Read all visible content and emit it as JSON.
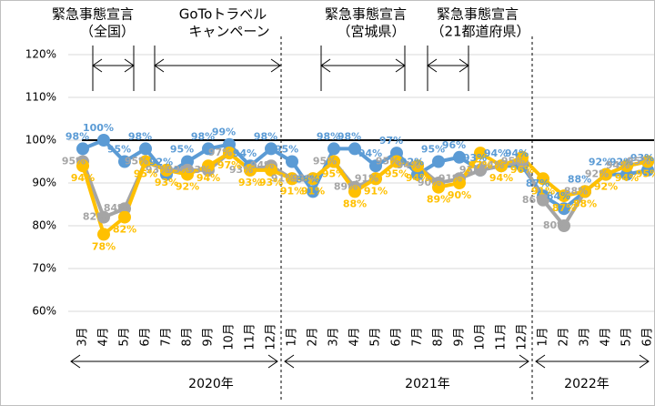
{
  "chart_data": {
    "type": "line",
    "categories": [
      "3月",
      "4月",
      "5月",
      "6月",
      "7月",
      "8月",
      "9月",
      "10月",
      "11月",
      "12月",
      "1月",
      "2月",
      "3月",
      "4月",
      "5月",
      "6月",
      "7月",
      "8月",
      "9月",
      "10月",
      "11月",
      "12月",
      "1月",
      "2月",
      "3月",
      "4月",
      "5月",
      "6月"
    ],
    "year_labels": [
      "2020年",
      "2021年",
      "2022年"
    ],
    "annotations": [
      {
        "lines": [
          "緊急事態宣言",
          "（全国）"
        ]
      },
      {
        "lines": [
          "GoToトラベル",
          "キャンペーン"
        ]
      },
      {
        "lines": [
          "緊急事態宣言",
          "（宮城県）"
        ]
      },
      {
        "lines": [
          "緊急事態宣言",
          "（21都道府県）"
        ]
      }
    ],
    "ylim": [
      60,
      120
    ],
    "yticks": [
      {
        "value": 60,
        "label": "60%"
      },
      {
        "value": 70,
        "label": "70%"
      },
      {
        "value": 80,
        "label": "80%"
      },
      {
        "value": 90,
        "label": "90%"
      },
      {
        "value": 100,
        "label": "100%"
      },
      {
        "value": 110,
        "label": "110%"
      },
      {
        "value": 120,
        "label": "120%"
      }
    ],
    "grid": true,
    "reference_line": 100,
    "series": [
      {
        "color": "#5b9bd5",
        "values": [
          98,
          100,
          95,
          98,
          92,
          95,
          98,
          99,
          94,
          98,
          95,
          88,
          98,
          98,
          94,
          97,
          92,
          95,
          96,
          93,
          94,
          94,
          87,
          84,
          88,
          92,
          92,
          93
        ],
        "value_labels": [
          "98%",
          "100%",
          "95%",
          "98%",
          "92%",
          "95%",
          "98%",
          "99%",
          "94%",
          "98%",
          "95%",
          "88%",
          "98%",
          "98%",
          "94%",
          "97%",
          "92%",
          "95%",
          "96%",
          "93%",
          "94%",
          "94%",
          "87%",
          "84%",
          "88%",
          "92%",
          "92%",
          "93%"
        ]
      },
      {
        "color": "#a5a5a5",
        "values": [
          95,
          82,
          84,
          95,
          93,
          93,
          93,
          97,
          93,
          94,
          91,
          91,
          95,
          89,
          91,
          95,
          94,
          90,
          91,
          93,
          94,
          95,
          86,
          80,
          88,
          92,
          94,
          95
        ],
        "value_labels": [
          "95%",
          "82%",
          "84%",
          "95%",
          "93%",
          "93%",
          "93%",
          "97%",
          "93%",
          "94%",
          "91%",
          "91%",
          "95%",
          "89%",
          "91%",
          "95%",
          "94%",
          "90%",
          "91%",
          "93%",
          "94%",
          "95%",
          "86%",
          "80%",
          "88%",
          "92%",
          "94%",
          "95%"
        ]
      },
      {
        "color": "#ffc000",
        "values": [
          94,
          78,
          82,
          95,
          93,
          92,
          94,
          97,
          93,
          93,
          91,
          91,
          95,
          88,
          91,
          95,
          94,
          89,
          90,
          97,
          94,
          96,
          91,
          87,
          88,
          92,
          94,
          95
        ],
        "value_labels": [
          "94%",
          "78%",
          "82%",
          "95%",
          "93%",
          "92%",
          "94%",
          "97%",
          "93%",
          "93%",
          "91%",
          "91%",
          "95%",
          "88%",
          "91%",
          "95%",
          "94%",
          "89%",
          "90%",
          "97%",
          "94%",
          "96%",
          "91%",
          "87%",
          "88%",
          "92%",
          "94%",
          "95%"
        ]
      }
    ]
  }
}
